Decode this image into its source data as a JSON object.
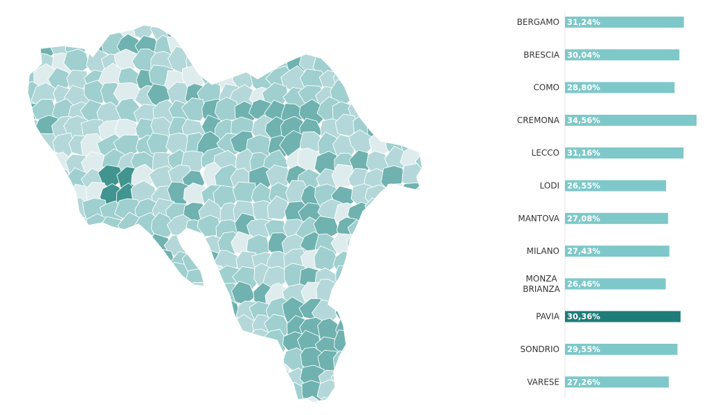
{
  "chart_data": [
    {
      "type": "choropleth-map",
      "title": "",
      "colors": {
        "lightest": "#dfeced",
        "light": "#b4d8d9",
        "medium": "#9fcfcf",
        "dark": "#6fb2b0",
        "darkest": "#41948f"
      }
    },
    {
      "type": "bar",
      "orientation": "horizontal",
      "title": "",
      "xlabel": "",
      "ylabel": "",
      "categories": [
        "BERGAMO",
        "BRESCIA",
        "COMO",
        "CREMONA",
        "LECCO",
        "LODI",
        "MANTOVA",
        "MILANO",
        "MONZA BRIANZA",
        "PAVIA",
        "SONDRIO",
        "VARESE"
      ],
      "category_lines": [
        [
          "BERGAMO"
        ],
        [
          "BRESCIA"
        ],
        [
          "COMO"
        ],
        [
          "CREMONA"
        ],
        [
          "LECCO"
        ],
        [
          "LODI"
        ],
        [
          "MANTOVA"
        ],
        [
          "MILANO"
        ],
        [
          "MONZA",
          "BRIANZA"
        ],
        [
          "PAVIA"
        ],
        [
          "SONDRIO"
        ],
        [
          "VARESE"
        ]
      ],
      "values": [
        31.24,
        30.04,
        28.8,
        34.56,
        31.16,
        26.55,
        27.08,
        27.43,
        26.46,
        30.36,
        29.55,
        27.26
      ],
      "value_labels": [
        "31,24%",
        "30,04%",
        "28,80%",
        "34,56%",
        "31,16%",
        "26,55%",
        "27,08%",
        "27,43%",
        "26,46%",
        "30,36%",
        "29,55%",
        "27,26%"
      ],
      "highlighted": "PAVIA",
      "xlim": [
        0,
        34.56
      ],
      "grid": false,
      "legend": "none",
      "colors": {
        "bar": "#7ec8c9",
        "highlight": "#1e7d78"
      }
    }
  ]
}
